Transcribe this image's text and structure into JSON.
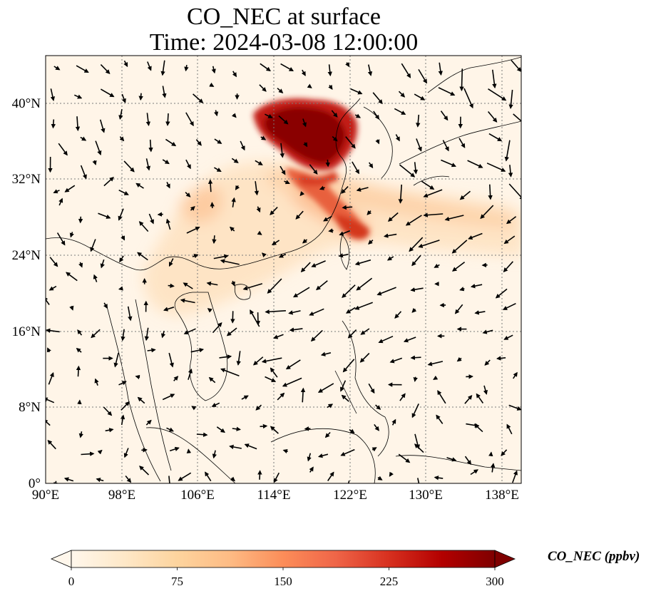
{
  "title": {
    "line1": "CO_NEC at surface",
    "line2": "Time: 2024-03-08 12:00:00"
  },
  "map": {
    "projection": "PlateCarree",
    "lon_range": [
      90,
      140
    ],
    "lat_range": [
      0,
      45
    ],
    "x_ticks": [
      "90°E",
      "98°E",
      "106°E",
      "114°E",
      "122°E",
      "130°E",
      "138°E"
    ],
    "y_ticks": [
      "0°",
      "8°N",
      "16°N",
      "24°N",
      "32°N",
      "40°N"
    ],
    "gridlines": "dotted",
    "field_variable": "CO_NEC",
    "overlay": "wind vectors",
    "colormap": "OrRd",
    "colormap_stops": [
      "#fff7ec",
      "#fee8c8",
      "#fdd49e",
      "#fdbb84",
      "#fc8d59",
      "#ef6548",
      "#d7301f",
      "#b30000",
      "#7f0000"
    ]
  },
  "colorbar": {
    "label": "CO_NEC (ppbv)",
    "ticks": [
      "0",
      "75",
      "150",
      "225",
      "300"
    ],
    "range": [
      0,
      300
    ],
    "extend": "both"
  }
}
